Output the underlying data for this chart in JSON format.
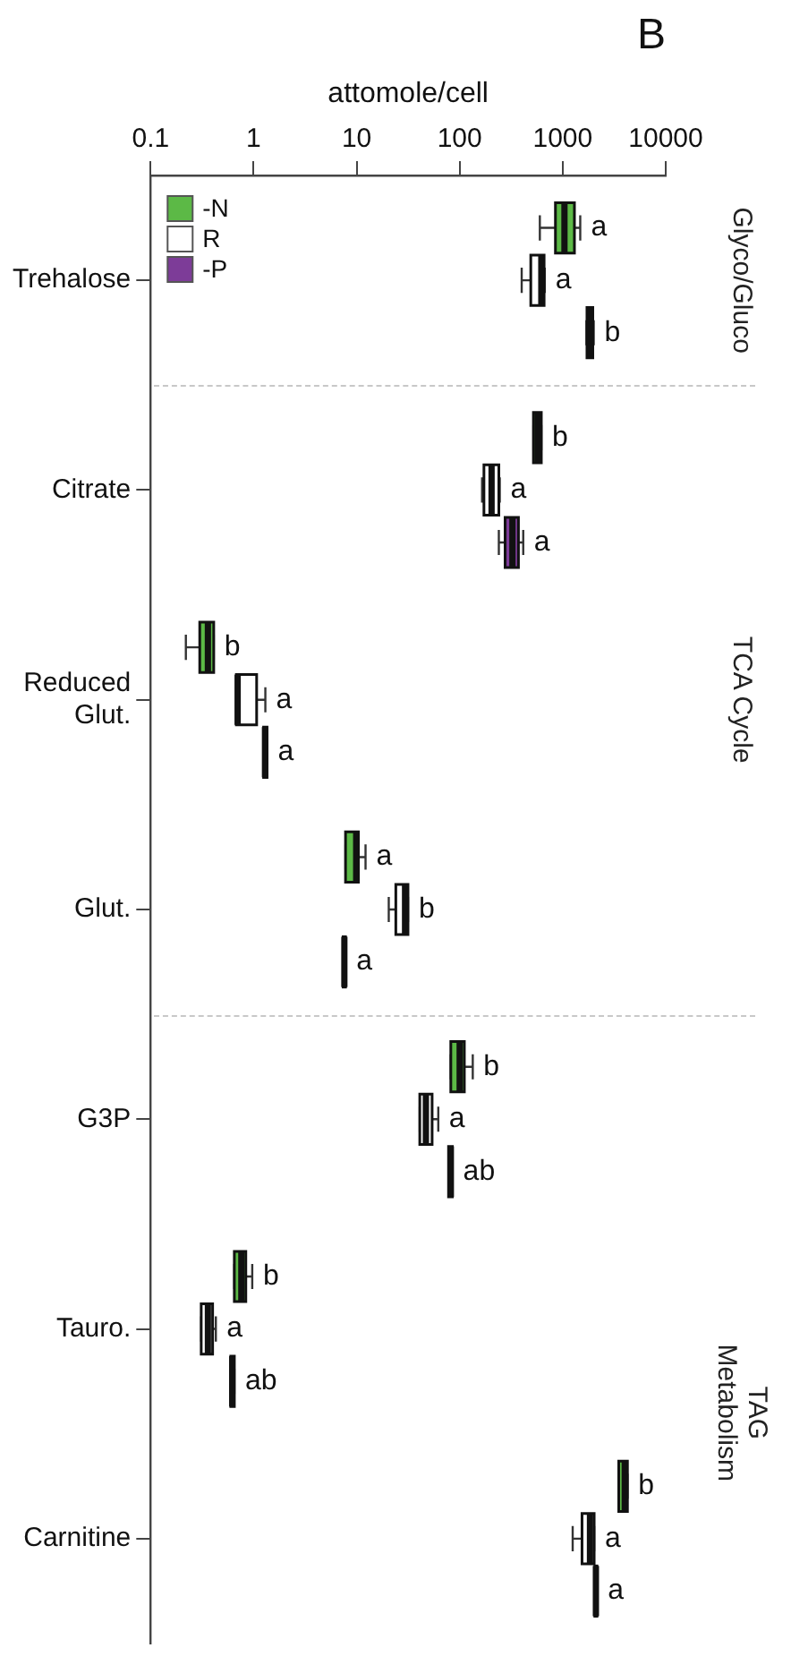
{
  "chart_data": {
    "type": "box",
    "title": "B",
    "xlabel": "attomole/cell",
    "orientation": "horizontal",
    "categories": [
      "Trehalose",
      "Citrate",
      "Reduced\nGlut.",
      "Glut.",
      "G3P",
      "Tauro.",
      "Carnitine"
    ],
    "log": "x",
    "xlim": [
      0.1,
      10000
    ],
    "xticks": [
      0.1,
      1,
      10,
      100,
      1000,
      10000
    ],
    "grid": false,
    "legend": "top left",
    "annotations": [
      "Glyco/Gluco",
      "TCA Cycle",
      "TAG\nMetabolism"
    ],
    "series": [
      {
        "name": "-N",
        "color": "#5cb946",
        "value_labels": [
          "a",
          "b",
          "b",
          "a",
          "b",
          "b",
          "b"
        ],
        "boxes": [
          {
            "low": 600,
            "q1": 850,
            "median": 1040,
            "q3": 1300,
            "high": 1480
          },
          {
            "low": 520,
            "q1": 520,
            "median": 570,
            "q3": 620,
            "high": 620
          },
          {
            "low": 0.22,
            "q1": 0.3,
            "median": 0.36,
            "q3": 0.41,
            "high": 0.41
          },
          {
            "low": 7.8,
            "q1": 7.8,
            "median": 9.9,
            "q3": 10.4,
            "high": 12.2
          },
          {
            "low": 82,
            "q1": 82,
            "median": 100,
            "q3": 111,
            "high": 134
          },
          {
            "low": 0.65,
            "q1": 0.65,
            "median": 0.76,
            "q3": 0.84,
            "high": 0.97
          },
          {
            "low": 3500,
            "q1": 3500,
            "median": 4000,
            "q3": 4250,
            "high": 4250
          }
        ]
      },
      {
        "name": "R",
        "color": "#ffffff",
        "value_labels": [
          "a",
          "a",
          "a",
          "b",
          "a",
          "a",
          "a"
        ],
        "boxes": [
          {
            "low": 400,
            "q1": 490,
            "median": 620,
            "q3": 660,
            "high": 670
          },
          {
            "low": 165,
            "q1": 172,
            "median": 204,
            "q3": 240,
            "high": 245
          },
          {
            "low": 0.68,
            "q1": 0.68,
            "median": 0.7,
            "q3": 1.07,
            "high": 1.3
          },
          {
            "low": 20.5,
            "q1": 24,
            "median": 29.5,
            "q3": 31.5,
            "high": 31.5
          },
          {
            "low": 41,
            "q1": 41,
            "median": 47,
            "q3": 54,
            "high": 62
          },
          {
            "low": 0.31,
            "q1": 0.31,
            "median": 0.36,
            "q3": 0.4,
            "high": 0.43
          },
          {
            "low": 1250,
            "q1": 1540,
            "median": 1840,
            "q3": 2020,
            "high": 2020
          }
        ]
      },
      {
        "name": "-P",
        "color": "#7d3c98",
        "value_labels": [
          "b",
          "a",
          "a",
          "a",
          "ab",
          "ab",
          "a"
        ],
        "boxes": [
          {
            "low": 1700,
            "q1": 1720,
            "median": 1810,
            "q3": 1960,
            "high": 2000
          },
          {
            "low": 240,
            "q1": 276,
            "median": 325,
            "q3": 372,
            "high": 414
          },
          {
            "low": 1.25,
            "q1": 1.25,
            "median": 1.29,
            "q3": 1.35,
            "high": 1.35
          },
          {
            "low": 7.4,
            "q1": 7.4,
            "median": 7.6,
            "q3": 7.8,
            "high": 7.8
          },
          {
            "low": 78,
            "q1": 78,
            "median": 82,
            "q3": 85,
            "high": 85
          },
          {
            "low": 0.6,
            "q1": 0.6,
            "median": 0.62,
            "q3": 0.65,
            "high": 0.65
          },
          {
            "low": 2050,
            "q1": 2050,
            "median": 2100,
            "q3": 2150,
            "high": 2150
          }
        ]
      }
    ]
  }
}
